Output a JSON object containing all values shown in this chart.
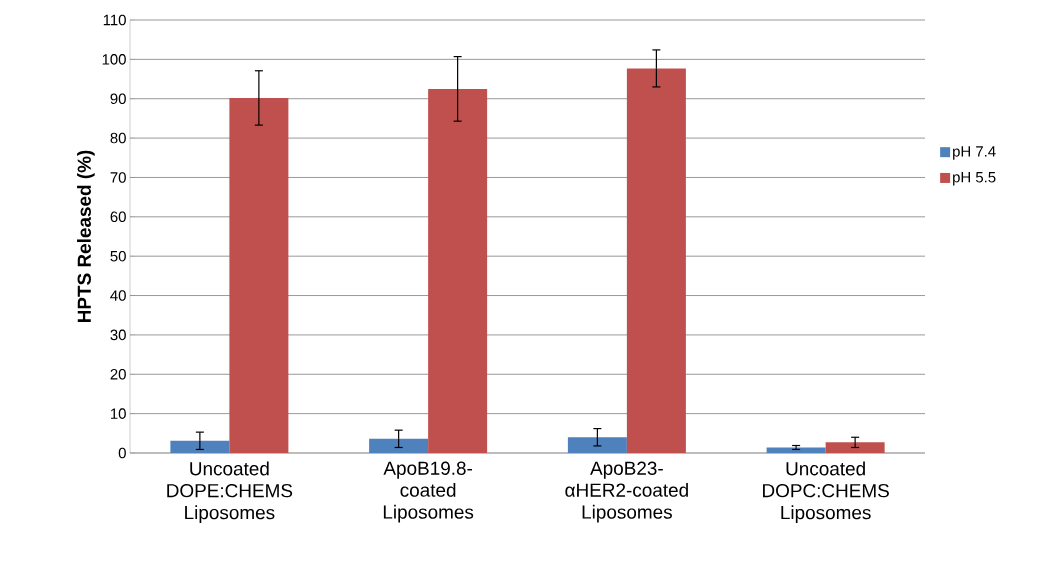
{
  "chart_data": {
    "type": "bar",
    "ylabel": "HPTS Released (%)",
    "categories": [
      "Uncoated DOPE:CHEMS Liposomes",
      "ApoB19.8-coated Liposomes",
      "ApoB23-αHER2-coated Liposomes",
      "Uncoated DOPC:CHEMS Liposomes"
    ],
    "series": [
      {
        "name": "pH 7.4",
        "color": "#4f81bd",
        "values": [
          3.1,
          3.6,
          4.0,
          1.4
        ],
        "errors": [
          2.2,
          2.2,
          2.2,
          0.5
        ]
      },
      {
        "name": "pH 5.5",
        "color": "#c0504d",
        "values": [
          90.2,
          92.5,
          97.7,
          2.7
        ],
        "errors": [
          6.9,
          8.2,
          4.7,
          1.3
        ]
      }
    ],
    "ylim": [
      0,
      110
    ],
    "yticks": [
      0,
      10,
      20,
      30,
      40,
      50,
      60,
      70,
      80,
      90,
      100,
      110
    ],
    "grid": "y",
    "legend": "right"
  }
}
